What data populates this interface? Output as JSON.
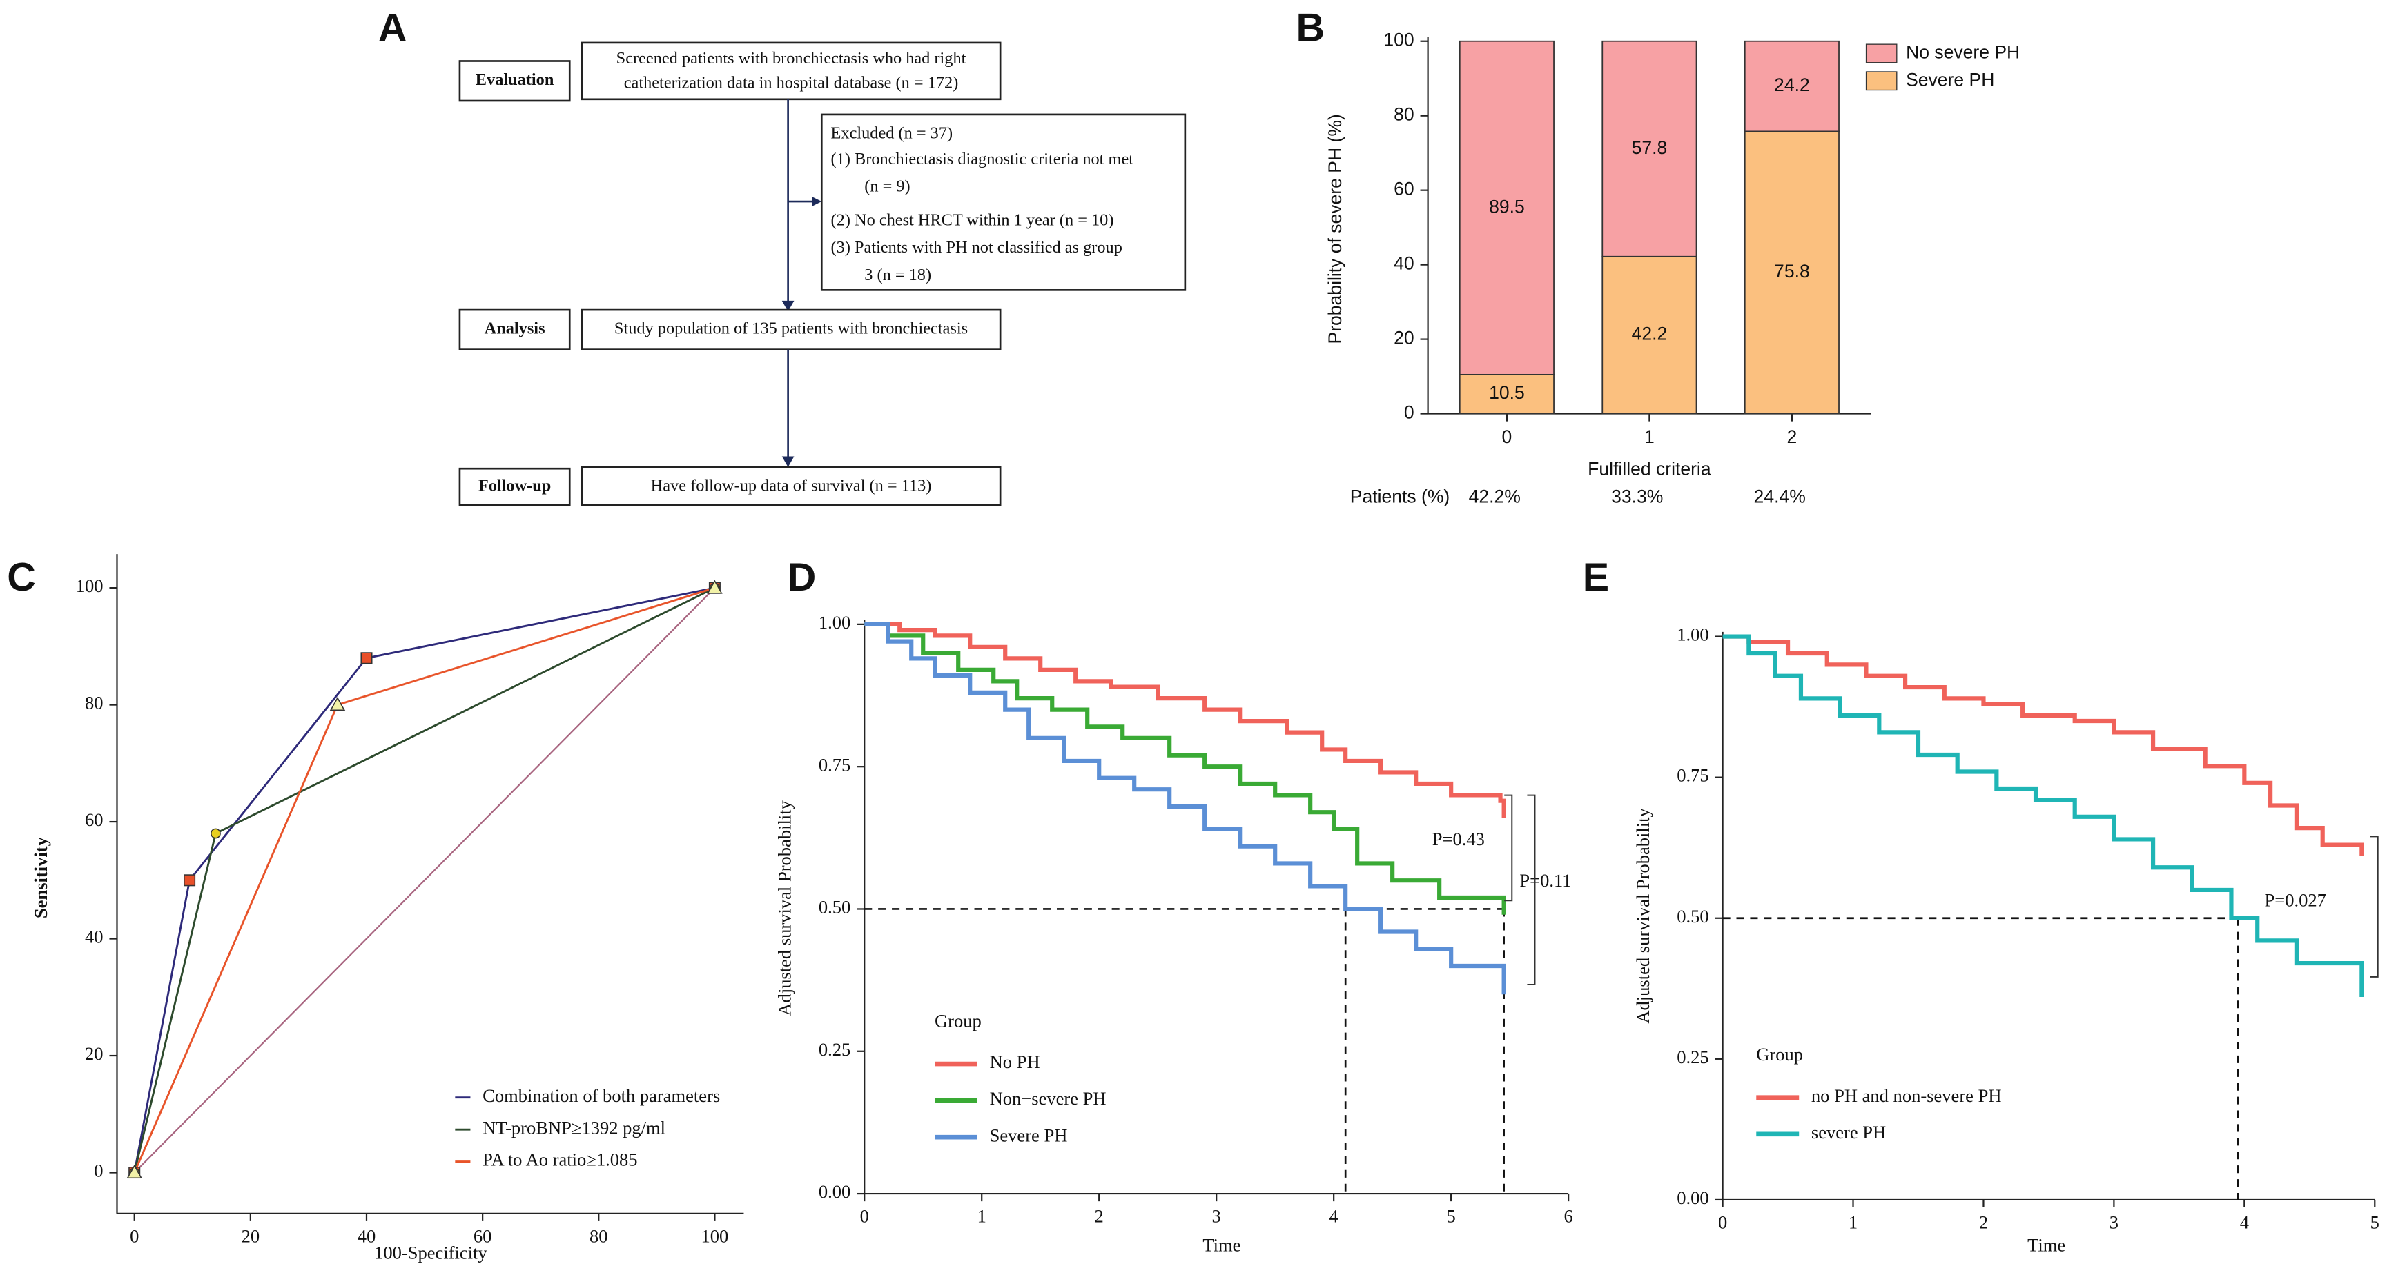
{
  "flowchart": {
    "panel": "A",
    "stages": [
      "Evaluation",
      "Analysis",
      "Follow-up"
    ],
    "screened": [
      "Screened patients with bronchiectasis who had right",
      "catheterization data in hospital database (n = 172)"
    ],
    "excluded": [
      "Excluded (n = 37)",
      "(1)  Bronchiectasis diagnostic criteria not met",
      "(n = 9)",
      "(2)  No chest HRCT within 1 year (n = 10)",
      "(3)  Patients with PH not classified as group",
      "3 (n = 18)"
    ],
    "analysis": "Study population of 135 patients with bronchiectasis",
    "followup": "Have follow-up data of survival (n = 113)"
  },
  "chart_data": [
    {
      "type": "bar",
      "panel": "B",
      "stacked": true,
      "categories": [
        "0",
        "1",
        "2"
      ],
      "series": [
        {
          "name": "No severe PH",
          "color": "#f7a1a4",
          "values": [
            89.5,
            57.8,
            24.2
          ]
        },
        {
          "name": "Severe PH",
          "color": "#fbc07f",
          "values": [
            10.5,
            42.2,
            75.8
          ]
        }
      ],
      "xlabel": "Fulfilled criteria",
      "ylabel": "Probability of severe PH (%)",
      "ylim": [
        0,
        100
      ],
      "yticks": [
        0,
        20,
        40,
        60,
        80,
        100
      ],
      "legend": "right",
      "footer": {
        "label": "Patients (%)",
        "values": [
          "42.2%",
          "33.3%",
          "24.4%"
        ]
      }
    },
    {
      "type": "line",
      "panel": "C",
      "xlabel": "100-Specificity",
      "ylabel": "Sensitivity",
      "xlim": [
        -3,
        105
      ],
      "ylim": [
        -7,
        105
      ],
      "xticks": [
        0,
        20,
        40,
        60,
        80,
        100
      ],
      "yticks": [
        0,
        20,
        40,
        60,
        80,
        100
      ],
      "legend": "lower right",
      "series": [
        {
          "x": [
            0,
            100
          ],
          "values": [
            0,
            100
          ],
          "color": "#a8647f"
        },
        {
          "name": "Combination of both parameters",
          "color": "#2e2a7a",
          "x": [
            0,
            9.5,
            40,
            100
          ],
          "values": [
            0,
            50,
            88,
            100
          ],
          "marker": "square",
          "marker_color": "#e8502a"
        },
        {
          "name": "NT-proBNP≥1392 pg/ml",
          "color": "#2d4a2d",
          "x": [
            0,
            14,
            100
          ],
          "values": [
            0,
            58,
            100
          ],
          "marker": "circle",
          "marker_color": "#e8d020"
        },
        {
          "name": "PA to Ao ratio≥1.085",
          "color": "#e8542a",
          "x": [
            0,
            35,
            100
          ],
          "values": [
            0,
            80,
            100
          ],
          "marker": "triangle",
          "marker_color": "#f2f2a8"
        }
      ]
    },
    {
      "type": "line",
      "panel": "D",
      "step": true,
      "xlabel": "Time",
      "ylabel": "Adjusted survival Probability",
      "xlim": [
        0,
        6
      ],
      "ylim": [
        0,
        1
      ],
      "xticks": [
        0,
        1,
        2,
        3,
        4,
        5,
        6
      ],
      "yticks": [
        {
          "value": 0,
          "label": "0.00"
        },
        {
          "value": 0.25,
          "label": "0.25"
        },
        {
          "value": 0.5,
          "label": "0.50"
        },
        {
          "value": 0.75,
          "label": "0.75"
        },
        {
          "value": 1,
          "label": "1.00"
        }
      ],
      "legend": "lower left",
      "legend_title": "Group",
      "hline": 0.5,
      "vlines": [
        4.1,
        5.45
      ],
      "annotations": [
        "P=0.43",
        "P=0.11"
      ],
      "series": [
        {
          "name": "No PH",
          "color": "#f0625a",
          "x": [
            0,
            0.3,
            0.6,
            0.9,
            1.2,
            1.5,
            1.8,
            2.1,
            2.5,
            2.9,
            3.2,
            3.6,
            3.9,
            4.1,
            4.4,
            4.7,
            5.0,
            5.42,
            5.45
          ],
          "values": [
            1,
            0.99,
            0.98,
            0.96,
            0.94,
            0.92,
            0.9,
            0.89,
            0.87,
            0.85,
            0.83,
            0.81,
            0.78,
            0.76,
            0.74,
            0.72,
            0.7,
            0.69,
            0.66
          ]
        },
        {
          "name": "Non−severe PH",
          "color": "#3aaa35",
          "x": [
            0,
            0.2,
            0.5,
            0.8,
            1.1,
            1.3,
            1.6,
            1.9,
            2.2,
            2.6,
            2.9,
            3.2,
            3.5,
            3.8,
            4.0,
            4.2,
            4.5,
            4.9,
            5.45
          ],
          "values": [
            1,
            0.98,
            0.95,
            0.92,
            0.9,
            0.87,
            0.85,
            0.82,
            0.8,
            0.77,
            0.75,
            0.72,
            0.7,
            0.67,
            0.64,
            0.58,
            0.55,
            0.52,
            0.49
          ]
        },
        {
          "name": "Severe PH",
          "color": "#5b8fd6",
          "x": [
            0,
            0.2,
            0.4,
            0.6,
            0.9,
            1.2,
            1.4,
            1.7,
            2.0,
            2.3,
            2.6,
            2.9,
            3.2,
            3.5,
            3.8,
            4.1,
            4.4,
            4.7,
            5.0,
            5.45
          ],
          "values": [
            1,
            0.97,
            0.94,
            0.91,
            0.88,
            0.85,
            0.8,
            0.76,
            0.73,
            0.71,
            0.68,
            0.64,
            0.61,
            0.58,
            0.54,
            0.5,
            0.46,
            0.43,
            0.4,
            0.35
          ]
        }
      ]
    },
    {
      "type": "line",
      "panel": "E",
      "step": true,
      "xlabel": "Time",
      "ylabel": "Adjusted survival Probability",
      "xlim": [
        0,
        5
      ],
      "ylim": [
        0,
        1
      ],
      "xticks": [
        0,
        1,
        2,
        3,
        4,
        5
      ],
      "yticks": [
        {
          "value": 0,
          "label": "0.00"
        },
        {
          "value": 0.25,
          "label": "0.25"
        },
        {
          "value": 0.5,
          "label": "0.50"
        },
        {
          "value": 0.75,
          "label": "0.75"
        },
        {
          "value": 1,
          "label": "1.00"
        }
      ],
      "legend": "lower left",
      "legend_title": "Group",
      "hline": 0.5,
      "vlines": [
        3.95
      ],
      "annotations": [
        "P=0.027"
      ],
      "series": [
        {
          "name": "no PH and non-severe PH",
          "color": "#f0625a",
          "x": [
            0,
            0.2,
            0.5,
            0.8,
            1.1,
            1.4,
            1.7,
            2.0,
            2.3,
            2.7,
            3.0,
            3.3,
            3.7,
            4.0,
            4.2,
            4.4,
            4.6,
            4.9
          ],
          "values": [
            1,
            0.99,
            0.97,
            0.95,
            0.93,
            0.91,
            0.89,
            0.88,
            0.86,
            0.85,
            0.83,
            0.8,
            0.77,
            0.74,
            0.7,
            0.66,
            0.63,
            0.61
          ]
        },
        {
          "name": "severe PH",
          "color": "#1fb5b5",
          "x": [
            0,
            0.2,
            0.4,
            0.6,
            0.9,
            1.2,
            1.5,
            1.8,
            2.1,
            2.4,
            2.7,
            3.0,
            3.3,
            3.6,
            3.9,
            4.1,
            4.4,
            4.9
          ],
          "values": [
            1,
            0.97,
            0.93,
            0.89,
            0.86,
            0.83,
            0.79,
            0.76,
            0.73,
            0.71,
            0.68,
            0.64,
            0.59,
            0.55,
            0.5,
            0.46,
            0.42,
            0.36
          ]
        }
      ]
    }
  ]
}
